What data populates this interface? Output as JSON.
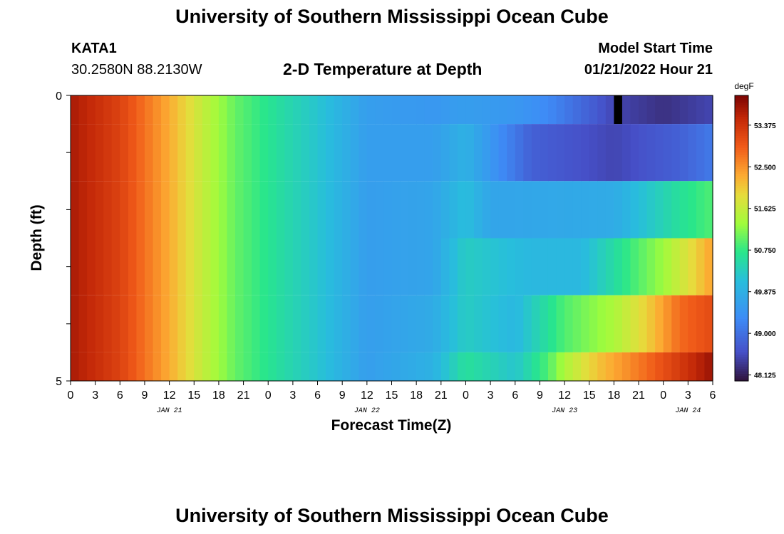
{
  "header": {
    "title": "University of Southern Mississippi Ocean Cube",
    "station_id": "KATA1",
    "station_coords": "30.2580N  88.2130W",
    "plot_title": "2-D Temperature at Depth",
    "model_start_label": "Model Start Time",
    "model_start_value": "01/21/2022 Hour 21"
  },
  "footer": {
    "title": "University of Southern Mississippi Ocean Cube"
  },
  "chart_data": {
    "type": "heatmap",
    "title": "2-D Temperature at Depth",
    "xlabel": "Forecast Time(Z)",
    "ylabel": "Depth (ft)",
    "x_hours": [
      0,
      3,
      6,
      9,
      12,
      15,
      18,
      21,
      24,
      27,
      30,
      33,
      36,
      39,
      42,
      45,
      48,
      51,
      54,
      57,
      60,
      63,
      66,
      69,
      72,
      75,
      78
    ],
    "x_tick_labels": [
      "0",
      "3",
      "6",
      "9",
      "12",
      "15",
      "18",
      "21",
      "0",
      "3",
      "6",
      "9",
      "12",
      "15",
      "18",
      "21",
      "0",
      "3",
      "6",
      "9",
      "12",
      "15",
      "18",
      "21",
      "0",
      "3",
      "6"
    ],
    "date_labels": [
      {
        "hour": 12,
        "label": "JAN 21"
      },
      {
        "hour": 36,
        "label": "JAN 22"
      },
      {
        "hour": 60,
        "label": "JAN 23"
      },
      {
        "hour": 75,
        "label": "JAN 24"
      }
    ],
    "y_tick_labels": [
      {
        "depth": 0,
        "label": "0"
      },
      {
        "depth": 5,
        "label": "5"
      }
    ],
    "ylim": [
      0,
      5
    ],
    "xlim": [
      0,
      78
    ],
    "layer_bounds_ft": [
      0,
      0.5,
      1.5,
      2.5,
      3.5,
      4.5,
      5
    ],
    "colorbar": {
      "unit": "degF",
      "min": 48.0,
      "max": 54.0,
      "ticks": [
        "53.375",
        "52.500",
        "51.625",
        "50.750",
        "49.875",
        "49.000",
        "48.125"
      ],
      "tick_values": [
        53.375,
        52.5,
        51.625,
        50.75,
        49.875,
        49.0,
        48.125
      ]
    },
    "layers": [
      {
        "depth_range": "0-0.5 ft",
        "keyframes": [
          [
            0,
            53.7
          ],
          [
            6,
            53.2
          ],
          [
            12,
            52.3
          ],
          [
            16,
            51.6
          ],
          [
            20,
            51.0
          ],
          [
            26,
            50.5
          ],
          [
            30,
            50.2
          ],
          [
            36,
            49.6
          ],
          [
            44,
            49.5
          ],
          [
            48,
            49.6
          ],
          [
            54,
            49.5
          ],
          [
            58,
            49.3
          ],
          [
            63,
            48.8
          ],
          [
            66,
            48.5
          ],
          [
            72,
            48.3
          ],
          [
            78,
            48.5
          ]
        ]
      },
      {
        "depth_range": "0.5-1.5 ft",
        "keyframes": [
          [
            0,
            53.7
          ],
          [
            6,
            53.2
          ],
          [
            12,
            52.3
          ],
          [
            16,
            51.6
          ],
          [
            20,
            51.0
          ],
          [
            26,
            50.5
          ],
          [
            30,
            50.2
          ],
          [
            36,
            49.6
          ],
          [
            44,
            49.6
          ],
          [
            48,
            49.9
          ],
          [
            51,
            49.5
          ],
          [
            56,
            48.8
          ],
          [
            66,
            48.5
          ],
          [
            74,
            48.8
          ],
          [
            78,
            49.1
          ]
        ]
      },
      {
        "depth_range": "1.5-2.5 ft",
        "keyframes": [
          [
            0,
            53.7
          ],
          [
            6,
            53.2
          ],
          [
            12,
            52.3
          ],
          [
            16,
            51.6
          ],
          [
            20,
            51.0
          ],
          [
            26,
            50.5
          ],
          [
            30,
            50.2
          ],
          [
            36,
            49.6
          ],
          [
            44,
            49.7
          ],
          [
            48,
            50.1
          ],
          [
            51,
            49.7
          ],
          [
            66,
            49.8
          ],
          [
            70,
            50.2
          ],
          [
            74,
            50.6
          ],
          [
            78,
            50.9
          ]
        ]
      },
      {
        "depth_range": "2.5-3.5 ft",
        "keyframes": [
          [
            0,
            53.7
          ],
          [
            6,
            53.2
          ],
          [
            12,
            52.3
          ],
          [
            16,
            51.6
          ],
          [
            20,
            51.0
          ],
          [
            26,
            50.5
          ],
          [
            30,
            50.2
          ],
          [
            36,
            49.6
          ],
          [
            44,
            49.7
          ],
          [
            48,
            50.3
          ],
          [
            56,
            50.0
          ],
          [
            62,
            50.0
          ],
          [
            68,
            50.8
          ],
          [
            72,
            51.3
          ],
          [
            76,
            52.0
          ],
          [
            78,
            52.4
          ]
        ]
      },
      {
        "depth_range": "3.5-4.5 ft",
        "keyframes": [
          [
            0,
            53.7
          ],
          [
            6,
            53.2
          ],
          [
            12,
            52.3
          ],
          [
            16,
            51.6
          ],
          [
            20,
            51.0
          ],
          [
            26,
            50.5
          ],
          [
            30,
            50.2
          ],
          [
            36,
            49.6
          ],
          [
            44,
            49.8
          ],
          [
            48,
            50.3
          ],
          [
            54,
            50.0
          ],
          [
            60,
            50.9
          ],
          [
            66,
            51.4
          ],
          [
            70,
            52.0
          ],
          [
            74,
            52.8
          ],
          [
            78,
            53.1
          ]
        ]
      },
      {
        "depth_range": "4.5-5 ft",
        "keyframes": [
          [
            0,
            53.7
          ],
          [
            6,
            53.2
          ],
          [
            12,
            52.3
          ],
          [
            16,
            51.6
          ],
          [
            20,
            51.0
          ],
          [
            26,
            50.5
          ],
          [
            30,
            50.2
          ],
          [
            36,
            49.6
          ],
          [
            44,
            49.9
          ],
          [
            48,
            50.6
          ],
          [
            54,
            50.2
          ],
          [
            58,
            50.9
          ],
          [
            60,
            51.4
          ],
          [
            64,
            52.1
          ],
          [
            70,
            52.8
          ],
          [
            74,
            53.3
          ],
          [
            78,
            53.8
          ]
        ]
      }
    ],
    "missing_cell": {
      "hour": 66,
      "layer": 0
    }
  }
}
